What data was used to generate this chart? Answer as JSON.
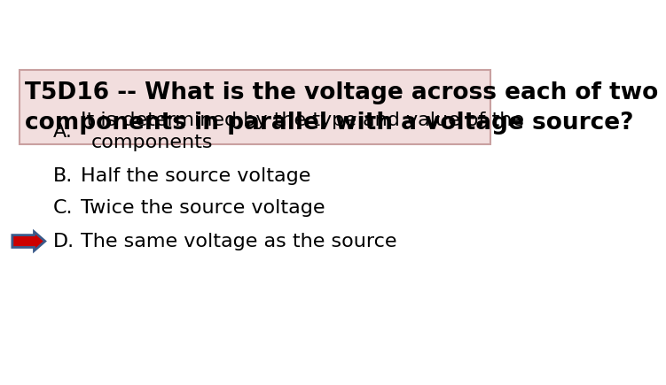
{
  "title_line1": "T5D16 -- What is the voltage across each of two",
  "title_line2": "components in parallel with a voltage source?",
  "title_bg_color": "#f2dede",
  "title_border_color": "#c9a0a0",
  "title_text_color": "#000000",
  "background_color": "#ffffff",
  "answers": [
    {
      "label": "A.",
      "text_line1": "It is determined by the type and value of the",
      "text_line2": "components"
    },
    {
      "label": "B.",
      "text_line1": "Half the source voltage",
      "text_line2": ""
    },
    {
      "label": "C.",
      "text_line1": "Twice the source voltage",
      "text_line2": ""
    },
    {
      "label": "D.",
      "text_line1": "The same voltage as the source",
      "text_line2": ""
    }
  ],
  "correct_index": 3,
  "arrow_fill_color": "#cc0000",
  "arrow_border_color": "#3a5a8a",
  "font_family": "DejaVu Sans",
  "title_fontsize": 19,
  "answer_fontsize": 16
}
